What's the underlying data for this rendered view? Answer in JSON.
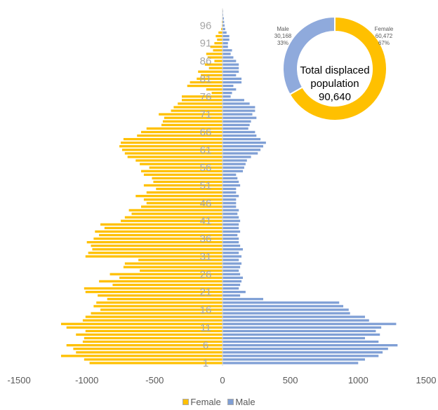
{
  "chart_data": [
    {
      "type": "bar",
      "subtype": "population-pyramid",
      "orientation": "horizontal",
      "xlim": [
        -1500,
        1500
      ],
      "x_ticks": [
        "-1500",
        "-1000",
        "-500",
        "0",
        "500",
        "1000",
        "1500"
      ],
      "x_tick_values": [
        -1500,
        -1000,
        -500,
        0,
        500,
        1000,
        1500
      ],
      "y_ticks": [
        "1",
        "6",
        "11",
        "16",
        "21",
        "26",
        "31",
        "36",
        "41",
        "46",
        "51",
        "56",
        "61",
        "66",
        "71",
        "76",
        "81",
        "86",
        "91",
        "96"
      ],
      "ages": [
        1,
        2,
        3,
        4,
        5,
        6,
        7,
        8,
        9,
        10,
        11,
        12,
        13,
        14,
        15,
        16,
        17,
        18,
        19,
        20,
        21,
        22,
        23,
        24,
        25,
        26,
        27,
        28,
        29,
        30,
        31,
        32,
        33,
        34,
        35,
        36,
        37,
        38,
        39,
        40,
        41,
        42,
        43,
        44,
        45,
        46,
        47,
        48,
        49,
        50,
        51,
        52,
        53,
        54,
        55,
        56,
        57,
        58,
        59,
        60,
        61,
        62,
        63,
        64,
        65,
        66,
        67,
        68,
        69,
        70,
        71,
        72,
        73,
        74,
        75,
        76,
        77,
        78,
        79,
        80,
        81,
        82,
        83,
        84,
        85,
        86,
        87,
        88,
        89,
        90,
        91,
        92,
        93,
        94,
        95,
        96,
        97,
        98,
        99,
        100
      ],
      "series": [
        {
          "name": "Female",
          "color": "#FFC000",
          "values": [
            -980,
            -1020,
            -1190,
            -1080,
            -1100,
            -1150,
            -1030,
            -1020,
            -1080,
            -1010,
            -1150,
            -1190,
            -1030,
            -1010,
            -970,
            -900,
            -950,
            -930,
            -850,
            -920,
            -1010,
            -1020,
            -810,
            -910,
            -760,
            -830,
            -610,
            -730,
            -720,
            -620,
            -1010,
            -990,
            -960,
            -970,
            -1000,
            -950,
            -910,
            -940,
            -870,
            -900,
            -750,
            -720,
            -670,
            -690,
            -600,
            -560,
            -580,
            -640,
            -560,
            -490,
            -580,
            -510,
            -520,
            -580,
            -600,
            -540,
            -610,
            -640,
            -700,
            -720,
            -740,
            -760,
            -750,
            -730,
            -630,
            -600,
            -560,
            -450,
            -440,
            -430,
            -470,
            -380,
            -360,
            -330,
            -300,
            -300,
            -80,
            -120,
            -260,
            -240,
            -190,
            -160,
            -180,
            -100,
            -130,
            -60,
            -110,
            -120,
            -70,
            -90,
            -60,
            -40,
            -50,
            -30,
            -10,
            -5,
            -5,
            -3,
            -2,
            -1
          ]
        },
        {
          "name": "Male",
          "color": "#7F9FD5",
          "values": [
            1000,
            1050,
            1150,
            1180,
            1220,
            1290,
            1150,
            1050,
            1160,
            1130,
            1170,
            1280,
            1080,
            1050,
            940,
            930,
            890,
            860,
            300,
            130,
            170,
            120,
            130,
            140,
            150,
            130,
            120,
            130,
            140,
            120,
            140,
            120,
            150,
            130,
            120,
            120,
            110,
            130,
            120,
            120,
            130,
            120,
            110,
            120,
            100,
            100,
            100,
            120,
            100,
            100,
            130,
            120,
            110,
            100,
            150,
            160,
            170,
            180,
            210,
            260,
            280,
            300,
            320,
            280,
            250,
            240,
            190,
            200,
            210,
            250,
            220,
            240,
            240,
            200,
            160,
            60,
            70,
            100,
            80,
            140,
            140,
            100,
            120,
            120,
            120,
            100,
            80,
            60,
            70,
            40,
            40,
            50,
            50,
            30,
            20,
            15,
            12,
            10,
            5,
            3
          ]
        }
      ],
      "legend": [
        "Female",
        "Male"
      ],
      "legend_position": "bottom",
      "grid": false
    },
    {
      "type": "pie",
      "subtype": "donut",
      "center_text": [
        "Total displaced",
        "population",
        "90,640"
      ],
      "slices": [
        {
          "name": "Female",
          "value": 60472,
          "value_label": "60,472",
          "percent_label": "67%",
          "color": "#FFC000"
        },
        {
          "name": "Male",
          "value": 30168,
          "value_label": "30,168",
          "percent_label": "33%",
          "color": "#8FAADC"
        }
      ]
    }
  ]
}
